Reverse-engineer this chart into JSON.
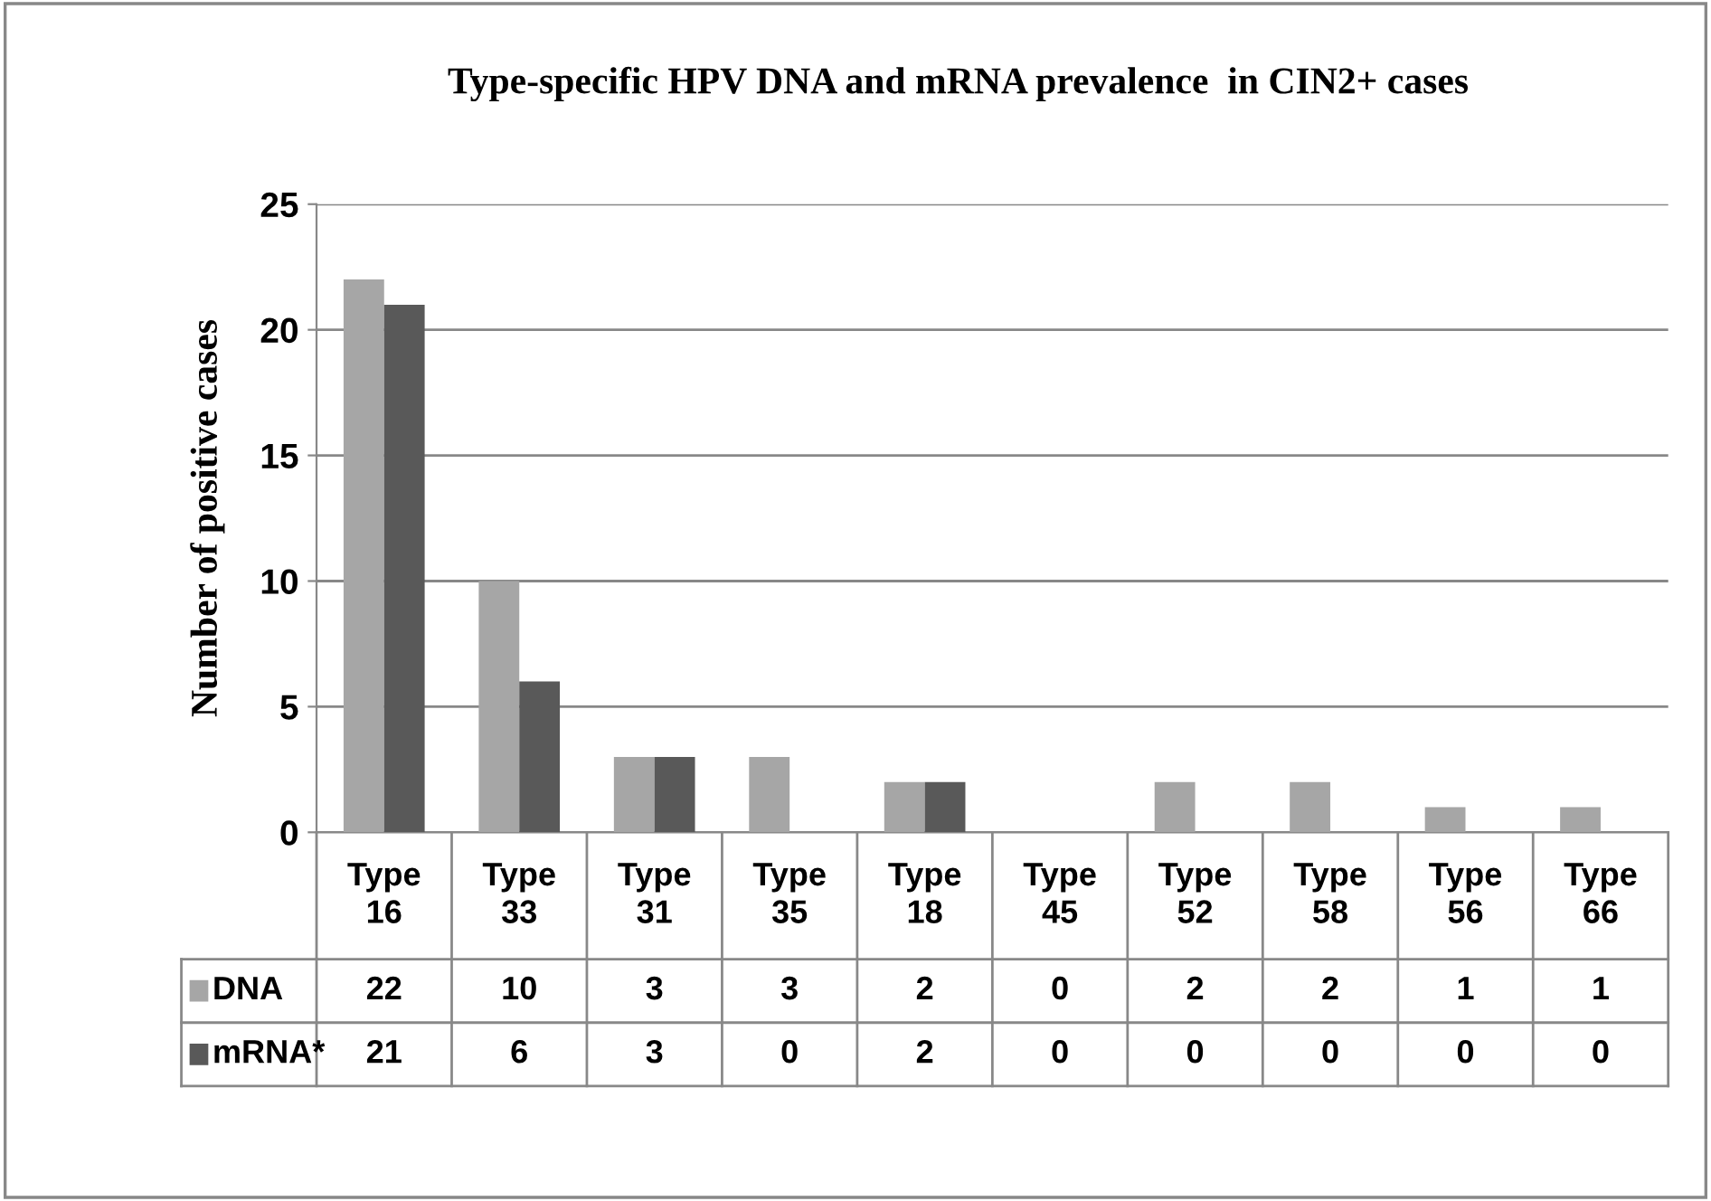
{
  "chart_data": {
    "type": "bar",
    "title": "Type-specific HPV DNA and mRNA prevalence  in CIN2+ cases",
    "ylabel": "Number of positive cases",
    "categories": [
      "Type 16",
      "Type 33",
      "Type 31",
      "Type 35",
      "Type 18",
      "Type 45",
      "Type 52",
      "Type 58",
      "Type 56",
      "Type 66"
    ],
    "series": [
      {
        "name": "DNA",
        "color": "#a6a6a6",
        "values": [
          22,
          10,
          3,
          3,
          2,
          0,
          2,
          2,
          1,
          1
        ]
      },
      {
        "name": "mRNA*",
        "color": "#595959",
        "values": [
          21,
          6,
          3,
          0,
          2,
          0,
          0,
          0,
          0,
          0
        ]
      }
    ],
    "ylim": [
      0,
      25
    ],
    "yticks": [
      0,
      5,
      10,
      15,
      20,
      25
    ],
    "grid": "y",
    "legend": "bottom left",
    "data_labels": true
  }
}
